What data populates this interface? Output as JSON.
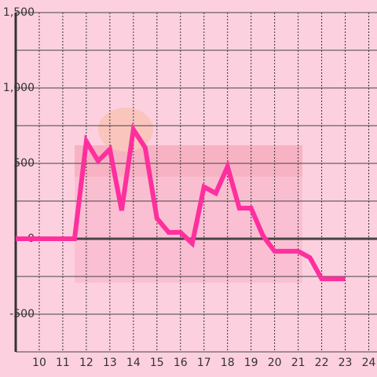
{
  "chart_data": {
    "type": "line",
    "x": [
      9,
      9.5,
      10,
      10.5,
      11,
      11.5,
      12,
      12.5,
      13,
      13.5,
      14,
      14.5,
      15,
      15.5,
      16,
      16.5,
      17,
      17.5,
      18,
      18.5,
      19,
      19.5,
      20,
      20.5,
      21,
      21.5,
      22,
      22.5,
      23
    ],
    "series": [
      {
        "color": "#ff2f9e",
        "values": [
          0,
          0,
          0,
          0,
          0,
          0,
          646,
          516,
          594,
          188,
          724,
          604,
          135,
          42,
          42,
          -31,
          344,
          302,
          479,
          203,
          203,
          21,
          -83,
          -83,
          -83,
          -125,
          -266,
          -266,
          -266
        ]
      }
    ],
    "xlim": [
      9,
      24.35
    ],
    "xticks": [
      10,
      11,
      12,
      13,
      14,
      15,
      16,
      17,
      18,
      19,
      20,
      21,
      22,
      23,
      24
    ],
    "ylim": [
      -750,
      1500
    ],
    "yticks": [
      {
        "value": 1500,
        "label": "1,500"
      },
      {
        "value": 1000,
        "label": "1,000"
      },
      500,
      0,
      -500
    ],
    "yminor": [
      1250,
      750,
      250,
      -250,
      -750
    ],
    "grid": true
  }
}
